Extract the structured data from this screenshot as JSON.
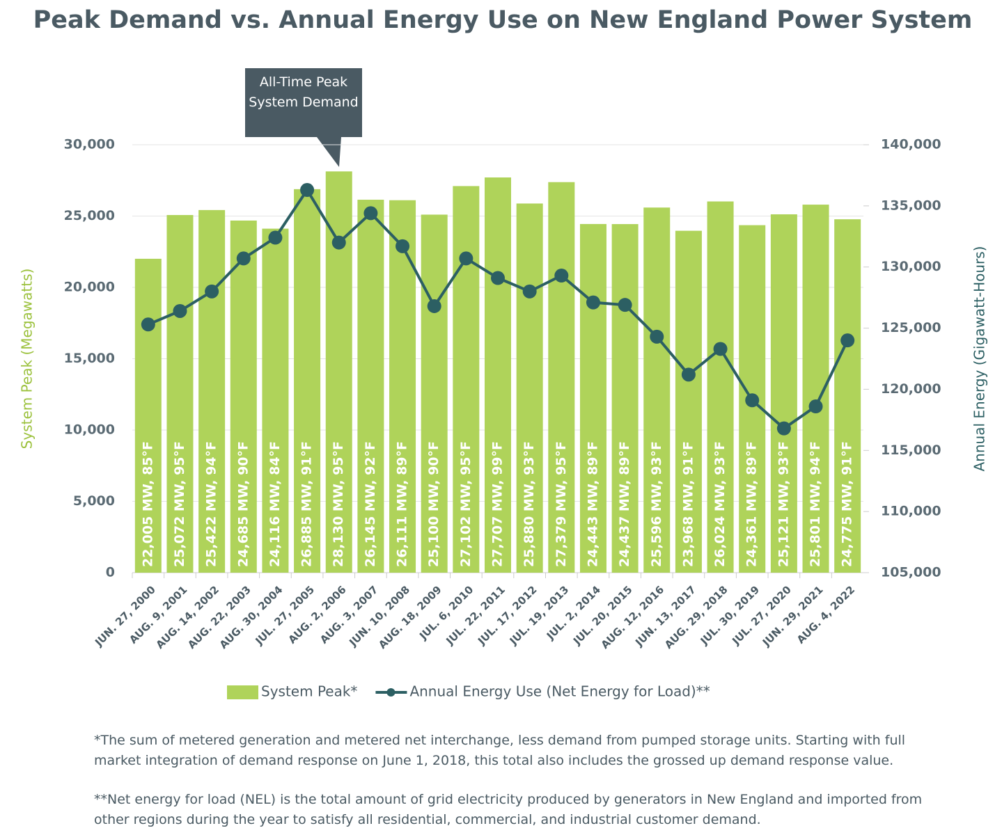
{
  "chart_data": {
    "type": "bar",
    "title": "Peak Demand vs. Annual Energy Use on New England Power System",
    "categories": [
      "JUN. 27, 2000",
      "AUG. 9, 2001",
      "AUG. 14, 2002",
      "AUG. 22, 2003",
      "AUG. 30, 2004",
      "JUL. 27, 2005",
      "AUG. 2, 2006",
      "AUG. 3, 2007",
      "JUN. 10, 2008",
      "AUG. 18, 2009",
      "JUL. 6, 2010",
      "JUL. 22, 2011",
      "JUL. 17, 2012",
      "JUL. 19, 2013",
      "JUL. 2, 2014",
      "JUL. 20, 2015",
      "AUG. 12, 2016",
      "JUN. 13, 2017",
      "AUG. 29, 2018",
      "JUL. 30, 2019",
      "JUL. 27, 2020",
      "JUN. 29, 2021",
      "AUG. 4, 2022"
    ],
    "series": [
      {
        "name": "System Peak*",
        "type": "bar",
        "color": "#afd35a",
        "values": [
          22005,
          25072,
          25422,
          24685,
          24116,
          26885,
          28130,
          26145,
          26111,
          25100,
          27102,
          27707,
          25880,
          27379,
          24443,
          24437,
          25596,
          23968,
          26024,
          24361,
          25121,
          25801,
          24775
        ],
        "value_labels": [
          "22,005 MW, 85°F",
          "25,072 MW, 95°F",
          "25,422 MW, 94°F",
          "24,685 MW, 90°F",
          "24,116 MW, 84°F",
          "26,885 MW, 91°F",
          "28,130 MW, 95°F",
          "26,145 MW, 92°F",
          "26,111 MW, 89°F",
          "25,100 MW, 90°F",
          "27,102 MW, 95°F",
          "27,707 MW, 99°F",
          "25,880 MW, 93°F",
          "27,379 MW, 95°F",
          "24,443 MW, 89°F",
          "24,437 MW, 89°F",
          "25,596 MW, 93°F",
          "23,968 MW, 91°F",
          "26,024 MW, 93°F",
          "24,361 MW, 89°F",
          "25,121 MW, 93°F",
          "25,801 MW, 94°F",
          "24,775 MW, 91°F"
        ]
      },
      {
        "name": "Annual Energy Use (Net Energy for Load)**",
        "type": "line",
        "axis": "y2",
        "color": "#2c5f63",
        "values": [
          125300,
          126400,
          128000,
          130700,
          132400,
          136300,
          132000,
          134400,
          131700,
          126800,
          130700,
          129100,
          128000,
          129300,
          127100,
          126900,
          124300,
          121200,
          123300,
          119100,
          116800,
          118600,
          124000
        ]
      }
    ],
    "ylabel": "System Peak (Megawatts)",
    "y2label": "Annual Energy (Gigawatt-Hours)",
    "ylim": [
      0,
      30000
    ],
    "yticks": [
      0,
      {
        "value": 5000,
        "label": "5,000"
      },
      {
        "value": 10000,
        "label": "10,000"
      },
      {
        "value": 15000,
        "label": "15,000"
      },
      {
        "value": 20000,
        "label": "20,000"
      },
      {
        "value": 25000,
        "label": "25,000"
      },
      {
        "value": 30000,
        "label": "30,000"
      }
    ],
    "y2lim": [
      105000,
      140000
    ],
    "y2ticks": [
      {
        "value": 105000,
        "label": "105,000"
      },
      {
        "value": 110000,
        "label": "110,000"
      },
      {
        "value": 115000,
        "label": "115,000"
      },
      {
        "value": 120000,
        "label": "120,000"
      },
      {
        "value": 125000,
        "label": "125,000"
      },
      {
        "value": 130000,
        "label": "130,000"
      },
      {
        "value": 135000,
        "label": "135,000"
      },
      {
        "value": 140000,
        "label": "140,000"
      }
    ],
    "grid": true,
    "legend": "bottom",
    "annotation": "All-Time Peak System Demand",
    "notes": [
      "*The sum of metered generation and metered net interchange, less demand from pumped storage units. Starting with full market integration of demand response on June 1, 2018, this total also includes the grossed up demand response value.",
      "**Net energy for load (NEL) is the total amount of grid electricity produced by generators in New England and imported from other regions during the year to satisfy all residential, commercial, and industrial customer demand."
    ]
  }
}
